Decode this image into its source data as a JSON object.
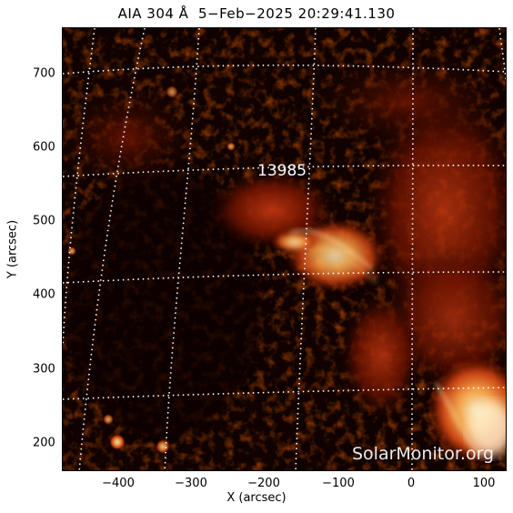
{
  "title": "AIA 304 Å  5−Feb−2025 20:29:41.130",
  "x_axis_label": "X (arcsec)",
  "y_axis_label": "Y (arcsec)",
  "x_ticks": [
    "−400",
    "−300",
    "−200",
    "−100",
    "0",
    "100"
  ],
  "y_ticks": [
    "700",
    "600",
    "500",
    "400",
    "300",
    "200"
  ],
  "region_label": "13985",
  "watermark": "SolarMonitor.org",
  "colors": {
    "background": "#0d0200",
    "dark_red": "#5a0a00",
    "red": "#a02000",
    "orange": "#e05a10",
    "yellow": "#ffd090",
    "grid": "#ffffff"
  }
}
